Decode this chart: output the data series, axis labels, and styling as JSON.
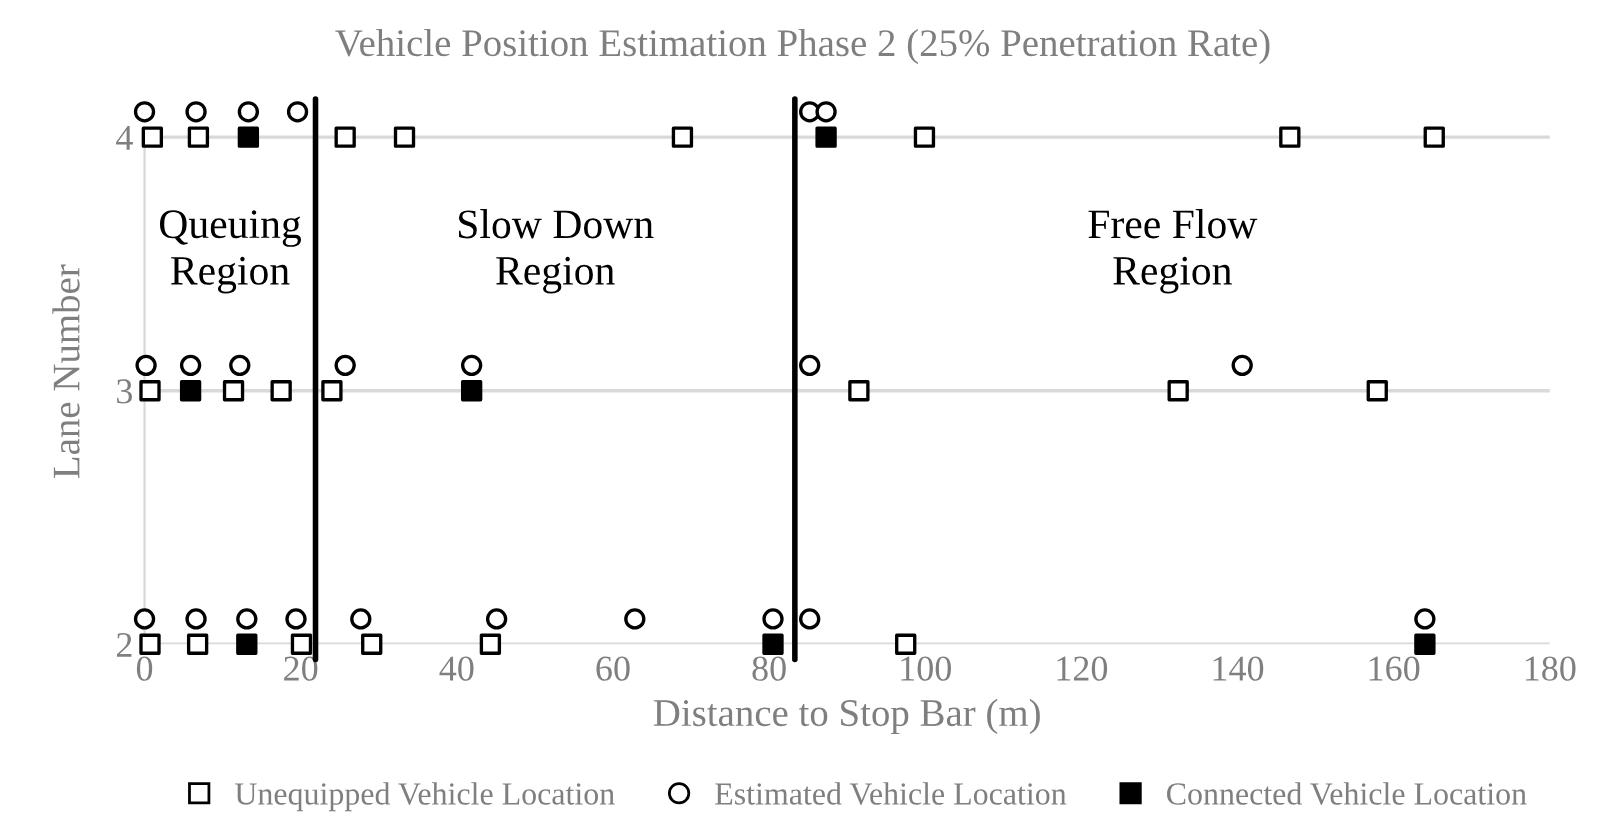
{
  "chart_data": {
    "type": "scatter",
    "title": "Vehicle Position Estimation Phase 2 (25% Penetration Rate)",
    "xlabel": "Distance to Stop Bar (m)",
    "ylabel": "Lane Number",
    "xlim": [
      0,
      180
    ],
    "xticks": [
      0,
      20,
      40,
      60,
      80,
      100,
      120,
      140,
      160,
      180
    ],
    "ylim": [
      2,
      4.15
    ],
    "yticks": [
      2,
      3,
      4
    ],
    "grid": "y",
    "legend": "bottom",
    "series": [
      {
        "name": "Unequipped Vehicle Location",
        "color": "#ffffff",
        "marker": "square",
        "x": [
          1.0,
          6.9,
          25.7,
          33.3,
          68.9,
          99.9,
          146.7,
          165.2,
          0.7,
          11.4,
          17.5,
          24.0,
          91.5,
          132.4,
          157.9,
          0.7,
          6.8,
          20.1,
          29.1,
          44.3,
          97.5
        ],
        "values": [
          4,
          4,
          4,
          4,
          4,
          4,
          4,
          4,
          3,
          3,
          3,
          3,
          3,
          3,
          3,
          2,
          2,
          2,
          2,
          2,
          2
        ]
      },
      {
        "name": "Estimated Vehicle Location",
        "color": "#ffffff",
        "marker": "circle",
        "x": [
          0,
          6.6,
          13.3,
          19.6,
          85.2,
          87.3,
          0.2,
          5.9,
          12.2,
          25.7,
          41.9,
          85.2,
          140.6,
          0,
          6.6,
          13.1,
          19.4,
          27.7,
          45.1,
          62.8,
          80.5,
          85.2,
          164.0
        ],
        "values": [
          4.1,
          4.1,
          4.1,
          4.1,
          4.1,
          4.1,
          3.1,
          3.1,
          3.1,
          3.1,
          3.1,
          3.1,
          3.1,
          2.1,
          2.1,
          2.1,
          2.1,
          2.1,
          2.1,
          2.1,
          2.1,
          2.1,
          2.1
        ]
      },
      {
        "name": "Connected Vehicle Location",
        "color": "#000000",
        "marker": "square",
        "x": [
          13.3,
          87.3,
          5.9,
          41.9,
          13.1,
          80.5,
          164.0
        ],
        "values": [
          4,
          4,
          3,
          3,
          2,
          2,
          2
        ]
      }
    ],
    "ref_lines": [
      {
        "axis": "x",
        "value": 21.9,
        "color": "#000000"
      },
      {
        "axis": "x",
        "value": 83.3,
        "color": "#000000"
      }
    ],
    "annotations": [
      "Queuing Region",
      "Slow Down Region",
      "Free Flow Region"
    ]
  }
}
